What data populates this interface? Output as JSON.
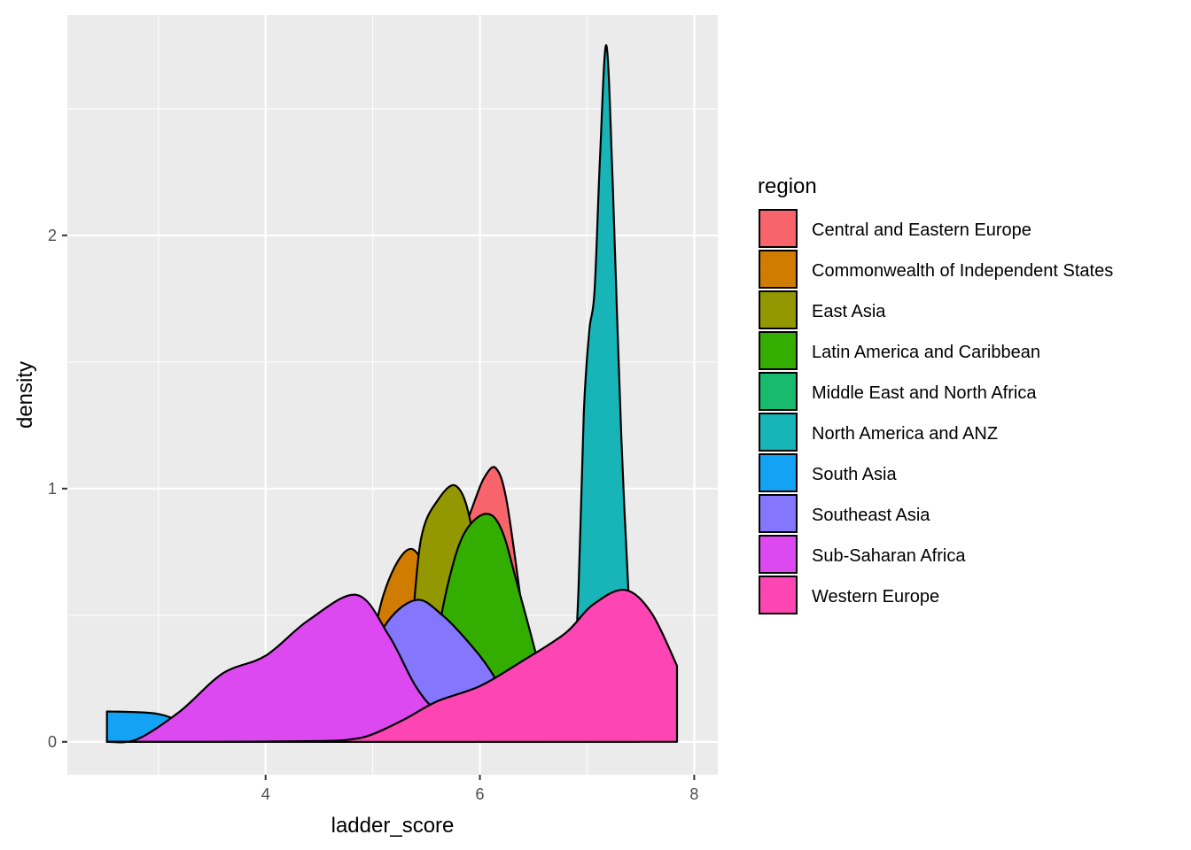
{
  "chart_data": {
    "type": "area",
    "subtype": "density",
    "xlabel": "ladder_score",
    "ylabel": "density",
    "xlim": [
      2.52,
      7.84
    ],
    "ylim": [
      0,
      2.75
    ],
    "x_ticks": [
      4,
      6,
      8
    ],
    "y_ticks": [
      0,
      1,
      2
    ],
    "grid": true,
    "legend": {
      "title": "region",
      "position": "right"
    },
    "series": [
      {
        "name": "South Asia",
        "color": "#14A3F4",
        "x": [
          2.52,
          3.0,
          3.3,
          3.6,
          3.85,
          4.0
        ],
        "y": [
          0.12,
          0.11,
          0.06,
          0.02,
          0.005,
          0.0
        ]
      },
      {
        "name": "Commonwealth of Independent States",
        "color": "#CF7C00",
        "x": [
          4.7,
          4.9,
          5.1,
          5.3,
          5.45,
          5.6,
          5.75
        ],
        "y": [
          0.0,
          0.22,
          0.58,
          0.75,
          0.72,
          0.5,
          0.2
        ]
      },
      {
        "name": "Central and Eastern Europe",
        "color": "#F8646B",
        "x": [
          5.2,
          5.5,
          5.75,
          5.95,
          6.05,
          6.15,
          6.25,
          6.4,
          6.55
        ],
        "y": [
          0.0,
          0.3,
          0.7,
          0.95,
          1.05,
          1.08,
          0.95,
          0.5,
          0.0
        ]
      },
      {
        "name": "East Asia",
        "color": "#939800",
        "x": [
          5.2,
          5.35,
          5.45,
          5.6,
          5.78,
          5.92,
          6.05,
          6.15
        ],
        "y": [
          0.0,
          0.4,
          0.8,
          0.95,
          1.01,
          0.85,
          0.4,
          0.0
        ]
      },
      {
        "name": "Latin America and Caribbean",
        "color": "#33AD00",
        "x": [
          5.4,
          5.55,
          5.7,
          5.85,
          6.05,
          6.2,
          6.35,
          6.55,
          6.7
        ],
        "y": [
          0.0,
          0.3,
          0.62,
          0.82,
          0.9,
          0.84,
          0.62,
          0.3,
          0.0
        ]
      },
      {
        "name": "Middle East and North Africa",
        "color": "#18BA6E",
        "x": [
          4.5,
          5.0,
          5.5,
          6.0,
          6.5,
          7.0
        ],
        "y": [
          0.0,
          0.05,
          0.12,
          0.1,
          0.05,
          0.0
        ]
      },
      {
        "name": "North America and ANZ",
        "color": "#17B5B8",
        "x": [
          6.85,
          6.92,
          6.97,
          7.02,
          7.07,
          7.12,
          7.18,
          7.24,
          7.32,
          7.42,
          7.48
        ],
        "y": [
          0.0,
          0.6,
          1.3,
          1.62,
          1.78,
          2.3,
          2.75,
          2.2,
          1.2,
          0.3,
          0.0
        ]
      },
      {
        "name": "Southeast Asia",
        "color": "#8477FE",
        "x": [
          4.6,
          4.85,
          5.1,
          5.4,
          5.65,
          5.9,
          6.1,
          6.35,
          6.6
        ],
        "y": [
          0.0,
          0.18,
          0.45,
          0.56,
          0.5,
          0.39,
          0.28,
          0.1,
          0.0
        ]
      },
      {
        "name": "Sub-Saharan Africa",
        "color": "#DC49F1",
        "x": [
          2.52,
          2.8,
          3.2,
          3.6,
          4.0,
          4.4,
          4.85,
          5.15,
          5.4,
          5.6,
          5.9,
          6.2
        ],
        "y": [
          0.0,
          0.01,
          0.12,
          0.27,
          0.34,
          0.48,
          0.58,
          0.42,
          0.22,
          0.12,
          0.04,
          0.0
        ]
      },
      {
        "name": "Western Europe",
        "color": "#FD45B3",
        "x": [
          2.52,
          3.5,
          4.5,
          4.8,
          5.0,
          5.3,
          5.6,
          6.0,
          6.4,
          6.8,
          7.05,
          7.35,
          7.6,
          7.84
        ],
        "y": [
          0.0,
          0.0,
          0.003,
          0.01,
          0.03,
          0.09,
          0.16,
          0.22,
          0.32,
          0.43,
          0.54,
          0.6,
          0.51,
          0.3
        ]
      }
    ]
  }
}
